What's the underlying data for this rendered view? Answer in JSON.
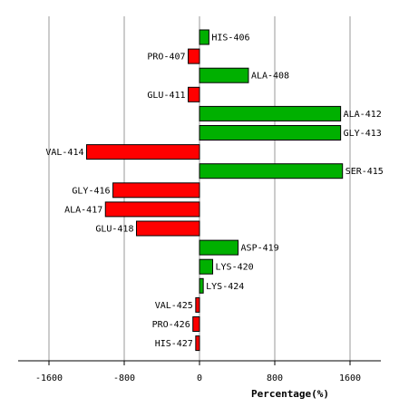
{
  "chart_data": {
    "type": "bar",
    "orientation": "horizontal",
    "title": "",
    "xlabel": "Percentage(%)",
    "ylabel": "",
    "xlim": [
      -2400,
      2400
    ],
    "xticks": [
      -1600,
      -800,
      0,
      800,
      1600
    ],
    "xtick_labels": [
      "-1600",
      "-800",
      "0",
      "800",
      "1600"
    ],
    "grid": true,
    "legend": "none",
    "colors": {
      "positive": "#00b000",
      "negative": "#ff0000",
      "grid": "#999999",
      "axis": "#000000"
    },
    "categories": [
      "HIS-406",
      "PRO-407",
      "ALA-408",
      "GLU-411",
      "ALA-412",
      "GLY-413",
      "VAL-414",
      "SER-415",
      "GLY-416",
      "ALA-417",
      "GLU-418",
      "ASP-419",
      "LYS-420",
      "LYS-424",
      "VAL-425",
      "PRO-426",
      "HIS-427"
    ],
    "values": [
      100,
      -120,
      520,
      -120,
      1500,
      1500,
      -1200,
      1520,
      -920,
      -1000,
      -670,
      410,
      140,
      40,
      -40,
      -70,
      -40
    ]
  }
}
